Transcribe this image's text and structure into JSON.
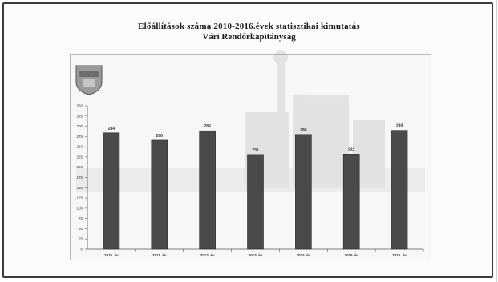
{
  "chart_data": {
    "type": "bar",
    "title": "Előállítások száma 2010-2016.évek statisztikai kimutatás",
    "subtitle": "Vári Rendőrkapitányság",
    "categories": [
      "2010. év",
      "2011. év",
      "2012. év",
      "2013. év",
      "2014. év",
      "2015. év",
      "2016. év"
    ],
    "values": [
      284,
      266,
      289,
      231,
      280,
      232,
      290
    ],
    "data_labels": [
      "284",
      "266",
      "289",
      "231",
      "280",
      "232",
      "290"
    ],
    "ylim": [
      0,
      350
    ],
    "yticks": [
      0,
      25,
      50,
      75,
      100,
      125,
      150,
      175,
      200,
      225,
      250,
      275,
      300,
      325,
      350
    ],
    "xlabel": "",
    "ylabel": "",
    "grid": false,
    "legend": "none",
    "bar_color": "#4a4a4a"
  }
}
